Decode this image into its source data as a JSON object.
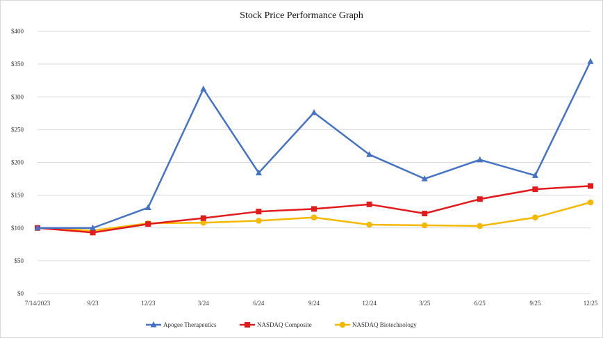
{
  "chart_data": {
    "type": "line",
    "title": "Stock Price Performance Graph",
    "categories": [
      "7/14/2023",
      "9/23",
      "12/23",
      "3/24",
      "6/24",
      "9/24",
      "12/24",
      "3/25",
      "6/25",
      "9/25",
      "12/25"
    ],
    "ylim": [
      0,
      400
    ],
    "yticks": [
      "$0",
      "$50",
      "$100",
      "$150",
      "$200",
      "$250",
      "$300",
      "$350",
      "$400"
    ],
    "ytick_values": [
      0,
      50,
      100,
      150,
      200,
      250,
      300,
      350,
      400
    ],
    "grid": true,
    "legend_position": "bottom",
    "series": [
      {
        "name": "Apogee Therapeutics",
        "color": "#4472C4",
        "marker": "triangle",
        "values": [
          100,
          100,
          131,
          312,
          184,
          276,
          212,
          175,
          204,
          180,
          354
        ]
      },
      {
        "name": "NASDAQ Composite",
        "color": "#E31A1C",
        "marker": "square",
        "values": [
          100,
          93,
          106,
          115,
          125,
          129,
          136,
          122,
          144,
          159,
          164
        ]
      },
      {
        "name": "NASDAQ Biotechnology",
        "color": "#F5B800",
        "marker": "circle",
        "values": [
          100,
          96,
          107,
          108,
          111,
          116,
          105,
          104,
          103,
          116,
          139
        ]
      }
    ]
  }
}
